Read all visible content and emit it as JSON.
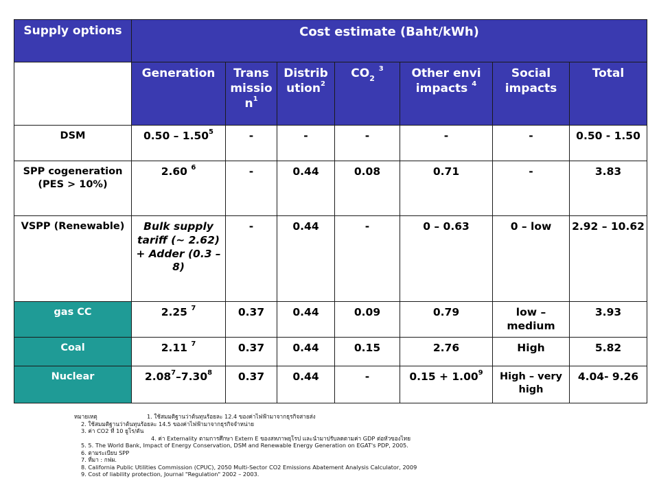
{
  "header": {
    "supply_options": "Supply options",
    "cost_estimate": "Cost estimate (Baht/kWh)",
    "columns": {
      "generation": "Generation",
      "transmission": "Trans missio n",
      "transmission_sup": "1",
      "distribution": "Distrib ution",
      "distribution_sup": "2",
      "co2": "CO",
      "co2_sub": "2",
      "co2_sup": "3",
      "other_envi": "Other envi impacts",
      "other_envi_sup": "4",
      "social": "Social impacts",
      "total": "Total"
    }
  },
  "rows": [
    {
      "label": "DSM",
      "generation": "0.50 – 1.50",
      "generation_sup": "5",
      "transmission": "-",
      "distribution": "-",
      "co2": "-",
      "other": "-",
      "social": "-",
      "total": "0.50 - 1.50"
    },
    {
      "label": "SPP cogeneration (PES > 10%)",
      "generation": "2.60",
      "generation_sup": "6",
      "transmission": "-",
      "distribution": "0.44",
      "co2": "0.08",
      "other": "0.71",
      "social": "-",
      "total": "3.83"
    },
    {
      "label": "VSPP (Renewable)",
      "generation": "Bulk supply tariff (~ 2.62) + Adder (0.3 – 8)",
      "transmission": "-",
      "distribution": "0.44",
      "co2": "-",
      "other": "0 – 0.63",
      "social": "0 – low",
      "total": "2.92 – 10.62"
    },
    {
      "label": "gas CC",
      "generation": "2.25",
      "generation_sup": "7",
      "transmission": "0.37",
      "distribution": "0.44",
      "co2": "0.09",
      "other": "0.79",
      "social": "low – medium",
      "total": "3.93"
    },
    {
      "label": "Coal",
      "generation": "2.11",
      "generation_sup": "7",
      "transmission": "0.37",
      "distribution": "0.44",
      "co2": "0.15",
      "other": "2.76",
      "social": "High",
      "total": "5.82"
    },
    {
      "label": "Nuclear",
      "generation_a": "2.08",
      "generation_a_sup": "7",
      "generation_b": "–7.30",
      "generation_b_sup": "8",
      "transmission": "0.37",
      "distribution": "0.44",
      "co2": "-",
      "other_a": "0.15 + 1.00",
      "other_a_sup": "9",
      "social": "High – very high",
      "total": "4.04- 9.26"
    }
  ],
  "notes": {
    "label": "หมายเหตุ",
    "n1": "1.  ใช้สมมติฐานว่าต้นทุนร้อยละ 12.4 ของค่าไฟฟ้ามาจากธุรกิจสายส่ง",
    "n2": "2.  ใช้สมมติฐานว่าต้นทุนร้อยละ 14.5 ของค่าไฟฟ้ามาจากธุรกิจจำหน่าย",
    "n3": "3.  ค่า CO2 ที่ 10 ยูโร/ตัน",
    "n4": "4.  ค่า Externality ตามการศึกษา Extern E ของสหภาพยุโรป และนำมาปรับลดตามค่า GDP ต่อหัวของไทย",
    "n5": "5. 5.  The World Bank, Impact of Energy Conservation, DSM and Renewable Energy Generation on EGAT's PDP,  2005.",
    "n6": "6.  ตามระเบียบ SPP",
    "n7": "7.  ที่มา : กฟผ.",
    "n8": "8.  California Public Utilities Commission (CPUC), 2050 Multi-Sector CO2 Emissions Abatement Analysis Calculator, 2009",
    "n9": "9.  Cost of liability protection, Journal \"Regulation\" 2002 – 2003."
  },
  "colors": {
    "header_bg": "#3a3ab0",
    "teal_bg": "#1f9b96",
    "border": "#1a1a1a"
  }
}
